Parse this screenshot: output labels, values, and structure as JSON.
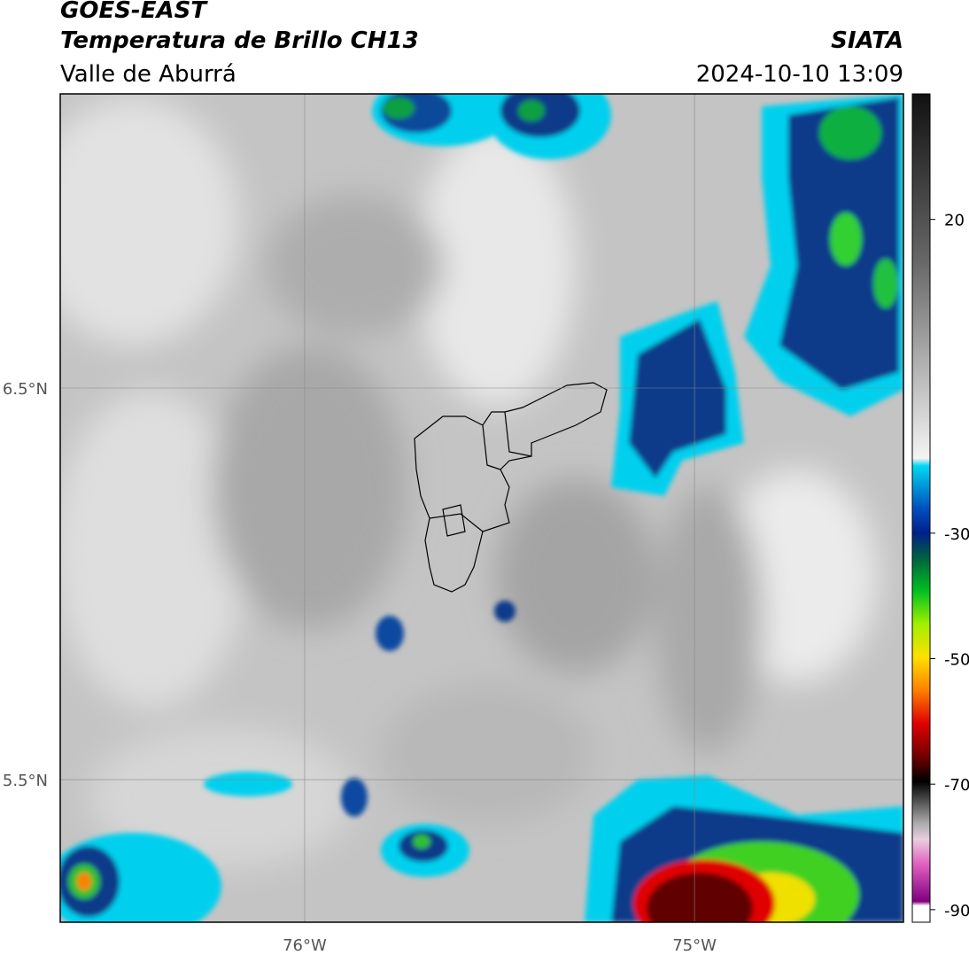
{
  "header": {
    "title": "GOES-EAST",
    "subtitle": "Temperatura de Brillo CH13",
    "source": "SIATA",
    "region": "Valle de Aburrá",
    "timestamp": "2024-10-10 13:09"
  },
  "map": {
    "xlim": [
      -76.627,
      -74.464
    ],
    "ylim": [
      5.136,
      7.251
    ],
    "xticks": [
      {
        "value": -76,
        "label": "76°W"
      },
      {
        "value": -75,
        "label": "75°W"
      }
    ],
    "yticks": [
      {
        "value": 5.5,
        "label": "5.5°N"
      },
      {
        "value": 6.5,
        "label": "6.5°N"
      }
    ],
    "grid": true
  },
  "colorbar": {
    "lim": [
      -92,
      40
    ],
    "ticks": [
      20,
      -30,
      -50,
      -70,
      -90
    ]
  }
}
